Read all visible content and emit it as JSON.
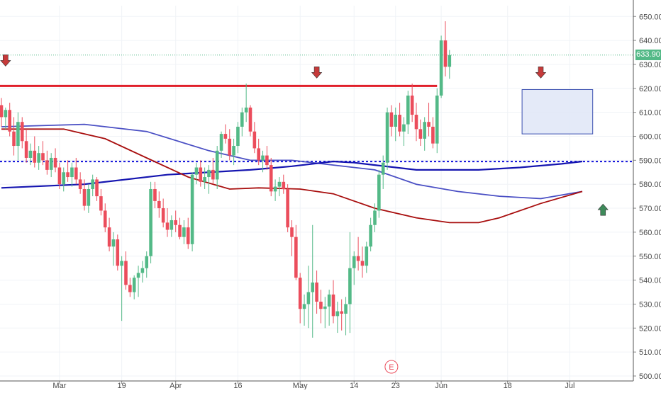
{
  "colors": {
    "up": "#53b987",
    "down": "#eb4d5c",
    "resistance": "#e01f2a",
    "dotted_level": "#1b1bdc",
    "ma_blue_dark": "#1515b0",
    "ma_blue_light": "#4a4fc4",
    "ma_red": "#a80e0e",
    "arrow_down": "#c63a3a",
    "arrow_up": "#3e8a5a",
    "box_fill": "#dfe6f7",
    "box_border": "#3a4fb0",
    "last_price_bg": "#53b987"
  },
  "current_price_label": "633.90",
  "earnings_marker": "E",
  "chart_data": {
    "type": "candlestick",
    "y_axis": {
      "range": [
        500,
        652
      ],
      "ticks": [
        "650.00",
        "640.00",
        "630.00",
        "620.00",
        "610.00",
        "600.00",
        "590.00",
        "580.00",
        "570.00",
        "560.00",
        "550.00",
        "540.00",
        "530.00",
        "520.00",
        "510.00",
        "500.00"
      ]
    },
    "x_axis": {
      "ticks": [
        {
          "label": "Mar",
          "index": 14
        },
        {
          "label": "19",
          "index": 29
        },
        {
          "label": "Apr",
          "index": 42
        },
        {
          "label": "16",
          "index": 57
        },
        {
          "label": "May",
          "index": 72
        },
        {
          "label": "14",
          "index": 85
        },
        {
          "label": "23",
          "index": 95
        },
        {
          "label": "Jun",
          "index": 106
        },
        {
          "label": "18",
          "index": 122
        },
        {
          "label": "Jul",
          "index": 137
        }
      ]
    },
    "levels": {
      "resistance": 621,
      "dotted": 589.5,
      "last_price": 633.9
    },
    "candles": [
      [
        613,
        616,
        604,
        608
      ],
      [
        608,
        612,
        603,
        611
      ],
      [
        611,
        614,
        600,
        602
      ],
      [
        602,
        608,
        592,
        596
      ],
      [
        596,
        610,
        590,
        606
      ],
      [
        606,
        608,
        595,
        598
      ],
      [
        598,
        603,
        589,
        591
      ],
      [
        591,
        597,
        588,
        594
      ],
      [
        594,
        600,
        587,
        589
      ],
      [
        589,
        596,
        586,
        593
      ],
      [
        593,
        598,
        588,
        590
      ],
      [
        590,
        594,
        584,
        586
      ],
      [
        586,
        593,
        583,
        591
      ],
      [
        591,
        595,
        585,
        587
      ],
      [
        587,
        589,
        578,
        580
      ],
      [
        580,
        587,
        577,
        585
      ],
      [
        585,
        590,
        581,
        583
      ],
      [
        583,
        589,
        579,
        587
      ],
      [
        587,
        591,
        580,
        582
      ],
      [
        582,
        585,
        576,
        578
      ],
      [
        578,
        582,
        569,
        571
      ],
      [
        571,
        580,
        568,
        578
      ],
      [
        578,
        584,
        575,
        582
      ],
      [
        582,
        583,
        573,
        575
      ],
      [
        575,
        578,
        567,
        569
      ],
      [
        569,
        572,
        560,
        562
      ],
      [
        562,
        566,
        552,
        554
      ],
      [
        554,
        560,
        546,
        557
      ],
      [
        557,
        559,
        544,
        546
      ],
      [
        546,
        550,
        523,
        548
      ],
      [
        548,
        552,
        536,
        538
      ],
      [
        538,
        541,
        533,
        535
      ],
      [
        535,
        542,
        532,
        541
      ],
      [
        541,
        546,
        533,
        543
      ],
      [
        543,
        548,
        539,
        545
      ],
      [
        545,
        552,
        541,
        550
      ],
      [
        550,
        581,
        547,
        578
      ],
      [
        578,
        581,
        570,
        573
      ],
      [
        573,
        577,
        566,
        570
      ],
      [
        570,
        574,
        562,
        564
      ],
      [
        564,
        570,
        558,
        561
      ],
      [
        561,
        567,
        558,
        565
      ],
      [
        565,
        569,
        560,
        563
      ],
      [
        563,
        566,
        557,
        558
      ],
      [
        558,
        565,
        555,
        562
      ],
      [
        562,
        566,
        553,
        555
      ],
      [
        555,
        585,
        552,
        584
      ],
      [
        584,
        589,
        580,
        587
      ],
      [
        587,
        590,
        579,
        581
      ],
      [
        581,
        587,
        578,
        583
      ],
      [
        583,
        588,
        576,
        586
      ],
      [
        586,
        591,
        580,
        582
      ],
      [
        582,
        596,
        578,
        594
      ],
      [
        594,
        602,
        591,
        601
      ],
      [
        601,
        605,
        597,
        599
      ],
      [
        599,
        603,
        590,
        592
      ],
      [
        592,
        599,
        588,
        596
      ],
      [
        596,
        606,
        593,
        604
      ],
      [
        604,
        612,
        600,
        610
      ],
      [
        610,
        622,
        606,
        612
      ],
      [
        612,
        613,
        600,
        602
      ],
      [
        602,
        606,
        593,
        595
      ],
      [
        595,
        599,
        588,
        590
      ],
      [
        590,
        594,
        585,
        592
      ],
      [
        592,
        596,
        586,
        588
      ],
      [
        588,
        591,
        575,
        577
      ],
      [
        577,
        582,
        573,
        579
      ],
      [
        579,
        583,
        575,
        581
      ],
      [
        581,
        584,
        576,
        578
      ],
      [
        578,
        580,
        560,
        562
      ],
      [
        562,
        565,
        550,
        558
      ],
      [
        558,
        563,
        540,
        541
      ],
      [
        541,
        543,
        522,
        528
      ],
      [
        528,
        534,
        521,
        530
      ],
      [
        530,
        546,
        520,
        535
      ],
      [
        535,
        563,
        516,
        539
      ],
      [
        539,
        544,
        526,
        531
      ],
      [
        531,
        536,
        522,
        528
      ],
      [
        528,
        533,
        520,
        529
      ],
      [
        529,
        536,
        521,
        534
      ],
      [
        534,
        540,
        522,
        525
      ],
      [
        525,
        531,
        518,
        527
      ],
      [
        527,
        532,
        519,
        526
      ],
      [
        526,
        533,
        517,
        530
      ],
      [
        530,
        560,
        518,
        545
      ],
      [
        545,
        552,
        538,
        550
      ],
      [
        550,
        558,
        544,
        548
      ],
      [
        548,
        554,
        541,
        546
      ],
      [
        546,
        556,
        543,
        554
      ],
      [
        554,
        566,
        552,
        563
      ],
      [
        563,
        572,
        560,
        569
      ],
      [
        569,
        586,
        566,
        584
      ],
      [
        584,
        592,
        578,
        589
      ],
      [
        589,
        612,
        586,
        610
      ],
      [
        610,
        613,
        600,
        604
      ],
      [
        604,
        612,
        598,
        609
      ],
      [
        609,
        614,
        600,
        602
      ],
      [
        602,
        608,
        596,
        605
      ],
      [
        605,
        619,
        601,
        617
      ],
      [
        617,
        622,
        606,
        609
      ],
      [
        609,
        614,
        598,
        603
      ],
      [
        603,
        607,
        596,
        599
      ],
      [
        599,
        608,
        594,
        606
      ],
      [
        606,
        614,
        600,
        604
      ],
      [
        604,
        608,
        595,
        597
      ],
      [
        597,
        620,
        593,
        617
      ],
      [
        617,
        642,
        616,
        640
      ],
      [
        640,
        648,
        625,
        629
      ],
      [
        629,
        636,
        624,
        633.9
      ]
    ],
    "moving_averages": [
      {
        "color_key": "ma_blue_light",
        "points": [
          [
            0,
            604
          ],
          [
            20,
            605
          ],
          [
            35,
            602
          ],
          [
            50,
            594
          ],
          [
            60,
            590
          ],
          [
            70,
            590
          ],
          [
            80,
            588
          ],
          [
            90,
            586
          ],
          [
            100,
            580
          ],
          [
            110,
            577
          ],
          [
            120,
            575
          ],
          [
            130,
            574
          ],
          [
            140,
            577
          ]
        ]
      },
      {
        "color_key": "ma_blue_dark",
        "points": [
          [
            0,
            578.5
          ],
          [
            20,
            580
          ],
          [
            40,
            584
          ],
          [
            60,
            586
          ],
          [
            70,
            587.5
          ],
          [
            80,
            589.5
          ],
          [
            85,
            589
          ],
          [
            90,
            588
          ],
          [
            100,
            586
          ],
          [
            115,
            586
          ],
          [
            125,
            587
          ],
          [
            135,
            588.5
          ],
          [
            140,
            589.5
          ]
        ]
      },
      {
        "color_key": "ma_red",
        "points": [
          [
            0,
            603
          ],
          [
            15,
            603
          ],
          [
            25,
            599
          ],
          [
            35,
            591
          ],
          [
            45,
            583
          ],
          [
            55,
            578
          ],
          [
            62,
            578.5
          ],
          [
            72,
            578
          ],
          [
            80,
            576
          ],
          [
            90,
            570
          ],
          [
            100,
            566
          ],
          [
            108,
            564
          ],
          [
            115,
            564
          ],
          [
            120,
            566
          ],
          [
            130,
            572
          ],
          [
            140,
            577
          ]
        ]
      }
    ],
    "arrows_down": [
      {
        "index": 1,
        "price": 634
      },
      {
        "index": 76,
        "price": 629
      },
      {
        "index": 130,
        "price": 629
      }
    ],
    "arrows_up": [
      {
        "index": 145,
        "price": 567
      }
    ],
    "consolidation_box": {
      "from_index": 126,
      "to_index": 142,
      "top": 619.5,
      "bottom": 601
    },
    "earnings_event": {
      "index": 94
    }
  }
}
